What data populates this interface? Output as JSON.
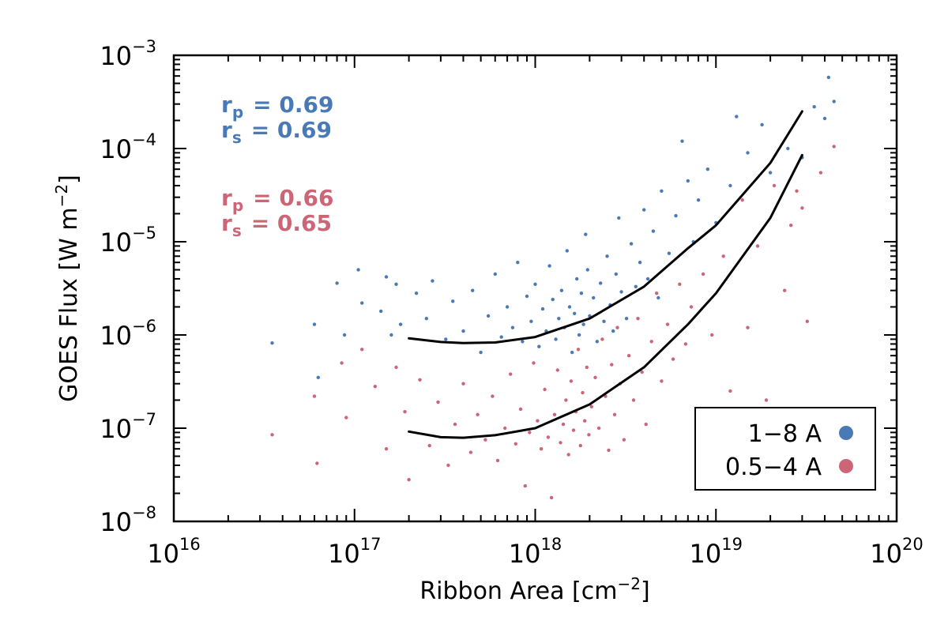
{
  "chart_data": {
    "type": "scatter",
    "xlabel": "Ribbon Area [cm",
    "xlabel_sup": "−2",
    "xlabel_close": "]",
    "ylabel": "GOES Flux [W m",
    "ylabel_sup": "−2",
    "ylabel_close": "]",
    "x_scale": "log",
    "y_scale": "log",
    "xlim": [
      1e+16,
      1e+20
    ],
    "ylim": [
      1e-08,
      0.001
    ],
    "grid": false,
    "legend_position": "bottom-right",
    "x_ticks": [
      {
        "value": 1e+16,
        "base": "10",
        "exp": "16"
      },
      {
        "value": 1e+17,
        "base": "10",
        "exp": "17"
      },
      {
        "value": 1e+18,
        "base": "10",
        "exp": "18"
      },
      {
        "value": 1e+19,
        "base": "10",
        "exp": "19"
      },
      {
        "value": 1e+20,
        "base": "10",
        "exp": "20"
      }
    ],
    "y_ticks": [
      {
        "value": 1e-08,
        "base": "10",
        "exp": "−8"
      },
      {
        "value": 1e-07,
        "base": "10",
        "exp": "−7"
      },
      {
        "value": 1e-06,
        "base": "10",
        "exp": "−6"
      },
      {
        "value": 1e-05,
        "base": "10",
        "exp": "−5"
      },
      {
        "value": 0.0001,
        "base": "10",
        "exp": "−4"
      },
      {
        "value": 0.001,
        "base": "10",
        "exp": "−3"
      }
    ],
    "series": [
      {
        "name": "1−8 A",
        "color": "#4a7ab5",
        "fit_curve": {
          "x": [
            2e+17,
            3e+17,
            4e+17,
            6e+17,
            1e+18,
            2e+18,
            4e+18,
            7e+18,
            1e+19,
            2e+19,
            3e+19
          ],
          "y": [
            9.2e-07,
            8.4e-07,
            8.2e-07,
            8.3e-07,
            9.5e-07,
            1.5e-06,
            3.3e-06,
            8.5e-06,
            1.5e-05,
            7e-05,
            0.00025
          ]
        },
        "stats": {
          "rp_label": "r",
          "rp_sub": "p",
          "rp_value": "= 0.69",
          "rs_label": "r",
          "rs_sub": "s",
          "rs_value": "= 0.69"
        },
        "points": [
          [
            3.5e+16,
            8.2e-07
          ],
          [
            6e+16,
            1.3e-06
          ],
          [
            6.3e+16,
            3.5e-07
          ],
          [
            8e+16,
            3.6e-06
          ],
          [
            8.8e+16,
            1e-06
          ],
          [
            1.05e+17,
            5e-06
          ],
          [
            1.1e+17,
            2.2e-06
          ],
          [
            1.4e+17,
            1.8e-06
          ],
          [
            1.5e+17,
            4.2e-06
          ],
          [
            1.6e+17,
            1e-06
          ],
          [
            1.7e+17,
            3.5e-06
          ],
          [
            1.8e+17,
            1.3e-06
          ],
          [
            2.2e+17,
            2.8e-06
          ],
          [
            2.5e+17,
            1.5e-06
          ],
          [
            2.7e+17,
            3.8e-06
          ],
          [
            3.2e+17,
            9e-07
          ],
          [
            3.5e+17,
            2.3e-06
          ],
          [
            4e+17,
            1.1e-06
          ],
          [
            4.5e+17,
            3e-06
          ],
          [
            5e+17,
            6.5e-07
          ],
          [
            5.5e+17,
            1.6e-06
          ],
          [
            6e+17,
            4.5e-06
          ],
          [
            6.5e+17,
            9.5e-07
          ],
          [
            7e+17,
            2e-06
          ],
          [
            7.5e+17,
            1.2e-06
          ],
          [
            8e+17,
            6e-06
          ],
          [
            8.5e+17,
            8.5e-07
          ],
          [
            9e+17,
            2.6e-06
          ],
          [
            9.5e+17,
            1.4e-06
          ],
          [
            1e+18,
            3.5e-06
          ],
          [
            1.05e+18,
            7.5e-07
          ],
          [
            1.1e+18,
            1.9e-06
          ],
          [
            1.15e+18,
            1.1e-06
          ],
          [
            1.2e+18,
            5.5e-06
          ],
          [
            1.25e+18,
            2.4e-06
          ],
          [
            1.3e+18,
            9e-07
          ],
          [
            1.35e+18,
            1.5e-06
          ],
          [
            1.4e+18,
            3e-06
          ],
          [
            1.45e+18,
            1.2e-06
          ],
          [
            1.5e+18,
            8e-06
          ],
          [
            1.55e+18,
            2e-06
          ],
          [
            1.6e+18,
            6.5e-07
          ],
          [
            1.65e+18,
            1.7e-06
          ],
          [
            1.7e+18,
            4e-06
          ],
          [
            1.75e+18,
            1e-06
          ],
          [
            1.8e+18,
            2.8e-06
          ],
          [
            1.85e+18,
            1.3e-06
          ],
          [
            1.9e+18,
            1.2e-05
          ],
          [
            1.95e+18,
            5e-06
          ],
          [
            2e+18,
            1.6e-06
          ],
          [
            2.1e+18,
            2.5e-06
          ],
          [
            2.2e+18,
            8.5e-07
          ],
          [
            2.3e+18,
            3.6e-06
          ],
          [
            2.4e+18,
            1.4e-06
          ],
          [
            2.5e+18,
            7e-06
          ],
          [
            2.6e+18,
            2.1e-06
          ],
          [
            2.7e+18,
            1.1e-06
          ],
          [
            2.8e+18,
            4.5e-06
          ],
          [
            2.9e+18,
            1.8e-05
          ],
          [
            3e+18,
            2.9e-06
          ],
          [
            3.2e+18,
            1.5e-06
          ],
          [
            3.4e+18,
            9.5e-06
          ],
          [
            3.6e+18,
            3.3e-06
          ],
          [
            3.8e+18,
            6e-06
          ],
          [
            4e+18,
            2.2e-05
          ],
          [
            4.2e+18,
            4e-06
          ],
          [
            4.5e+18,
            1.3e-05
          ],
          [
            4.8e+18,
            2.5e-06
          ],
          [
            5e+18,
            3.5e-05
          ],
          [
            5.5e+18,
            7.5e-06
          ],
          [
            6e+18,
            1.9e-05
          ],
          [
            6.5e+18,
            0.00012
          ],
          [
            7e+18,
            4.5e-05
          ],
          [
            7.5e+18,
            1e-05
          ],
          [
            8e+18,
            2.8e-05
          ],
          [
            9e+18,
            6e-05
          ],
          [
            1e+19,
            1.6e-05
          ],
          [
            1.2e+19,
            4e-05
          ],
          [
            1.3e+19,
            0.00022
          ],
          [
            1.5e+19,
            9e-05
          ],
          [
            1.8e+19,
            0.00018
          ],
          [
            2e+19,
            5.5e-05
          ],
          [
            2.5e+19,
            0.0001
          ],
          [
            3e+19,
            8e-05
          ],
          [
            3.5e+19,
            0.00028
          ],
          [
            4e+19,
            0.00021
          ],
          [
            4.5e+19,
            0.00032
          ],
          [
            4.2e+19,
            0.00058
          ]
        ]
      },
      {
        "name": "0.5−4 A",
        "color": "#cc6677",
        "fit_curve": {
          "x": [
            2e+17,
            3e+17,
            4e+17,
            6e+17,
            1e+18,
            2e+18,
            4e+18,
            7e+18,
            1e+19,
            2e+19,
            3e+19
          ],
          "y": [
            9.2e-08,
            8e-08,
            7.9e-08,
            8.4e-08,
            1e-07,
            1.8e-07,
            4.5e-07,
            1.3e-06,
            2.8e-06,
            1.8e-05,
            8.5e-05
          ]
        },
        "stats": {
          "rp_label": "r",
          "rp_sub": "p",
          "rp_value": "= 0.66",
          "rs_label": "r",
          "rs_sub": "s",
          "rs_value": "= 0.65"
        },
        "points": [
          [
            3.5e+16,
            8.5e-08
          ],
          [
            6e+16,
            2.2e-07
          ],
          [
            6.2e+16,
            4.2e-08
          ],
          [
            8.5e+16,
            5e-07
          ],
          [
            9e+16,
            1.3e-07
          ],
          [
            1.1e+17,
            7e-07
          ],
          [
            1.3e+17,
            2.8e-07
          ],
          [
            1.5e+17,
            6e-08
          ],
          [
            1.7e+17,
            4.5e-07
          ],
          [
            1.9e+17,
            1.5e-07
          ],
          [
            2e+17,
            2.8e-08
          ],
          [
            2.3e+17,
            3.3e-07
          ],
          [
            2.6e+17,
            6.5e-08
          ],
          [
            2.9e+17,
            1.9e-07
          ],
          [
            3.3e+17,
            4e-08
          ],
          [
            3.6e+17,
            1.1e-07
          ],
          [
            4e+17,
            3e-07
          ],
          [
            4.4e+17,
            5.5e-08
          ],
          [
            4.8e+17,
            1.4e-07
          ],
          [
            5.3e+17,
            7.5e-08
          ],
          [
            5.8e+17,
            2.2e-07
          ],
          [
            6.2e+17,
            4.5e-08
          ],
          [
            6.8e+17,
            1e-07
          ],
          [
            7.3e+17,
            3.8e-07
          ],
          [
            7.8e+17,
            6.8e-08
          ],
          [
            8.3e+17,
            1.6e-07
          ],
          [
            8.8e+17,
            2.4e-08
          ],
          [
            9.3e+17,
            9e-08
          ],
          [
            9.8e+17,
            5e-07
          ],
          [
            1.03e+18,
            1.2e-07
          ],
          [
            1.08e+18,
            6e-08
          ],
          [
            1.13e+18,
            2.6e-07
          ],
          [
            1.18e+18,
            8e-08
          ],
          [
            1.23e+18,
            1.8e-08
          ],
          [
            1.28e+18,
            1.4e-07
          ],
          [
            1.33e+18,
            4.2e-07
          ],
          [
            1.38e+18,
            7e-08
          ],
          [
            1.43e+18,
            1.1e-07
          ],
          [
            1.48e+18,
            2e-07
          ],
          [
            1.53e+18,
            5.2e-08
          ],
          [
            1.58e+18,
            3.2e-07
          ],
          [
            1.63e+18,
            9.5e-08
          ],
          [
            1.68e+18,
            1.5e-07
          ],
          [
            1.73e+18,
            7e-07
          ],
          [
            1.78e+18,
            6.5e-08
          ],
          [
            1.83e+18,
            2.4e-07
          ],
          [
            1.88e+18,
            1.2e-07
          ],
          [
            1.93e+18,
            4.5e-07
          ],
          [
            1.98e+18,
            8.5e-08
          ],
          [
            2.05e+18,
            1.7e-07
          ],
          [
            2.15e+18,
            3.5e-07
          ],
          [
            2.25e+18,
            1e-07
          ],
          [
            2.35e+18,
            9e-07
          ],
          [
            2.45e+18,
            2.2e-07
          ],
          [
            2.55e+18,
            5.8e-08
          ],
          [
            2.65e+18,
            4.8e-07
          ],
          [
            2.75e+18,
            1.4e-07
          ],
          [
            2.85e+18,
            1.2e-06
          ],
          [
            2.95e+18,
            3e-07
          ],
          [
            3.1e+18,
            7.5e-08
          ],
          [
            3.3e+18,
            6e-07
          ],
          [
            3.5e+18,
            2e-07
          ],
          [
            3.7e+18,
            1.5e-06
          ],
          [
            3.9e+18,
            4e-07
          ],
          [
            4.1e+18,
            1.1e-07
          ],
          [
            4.4e+18,
            8.5e-07
          ],
          [
            4.7e+18,
            2.8e-06
          ],
          [
            5e+18,
            3.2e-07
          ],
          [
            5.4e+18,
            1.3e-06
          ],
          [
            5.8e+18,
            5.5e-07
          ],
          [
            6.3e+18,
            3.5e-06
          ],
          [
            6.8e+18,
            8e-07
          ],
          [
            7.3e+18,
            2e-06
          ],
          [
            7.8e+18,
            1.6e-07
          ],
          [
            8.5e+18,
            4.5e-06
          ],
          [
            9.5e+18,
            1e-06
          ],
          [
            1.1e+19,
            7e-06
          ],
          [
            1.2e+19,
            2.5e-07
          ],
          [
            1.4e+19,
            2.8e-05
          ],
          [
            1.5e+19,
            1.2e-06
          ],
          [
            1.7e+19,
            9e-06
          ],
          [
            1.9e+19,
            2e-07
          ],
          [
            2.1e+19,
            4e-05
          ],
          [
            2.4e+19,
            3e-06
          ],
          [
            2.6e+19,
            1.5e-05
          ],
          [
            2.8e+19,
            3.5e-05
          ],
          [
            3e+19,
            2.3e-05
          ],
          [
            3.2e+19,
            1.4e-06
          ],
          [
            3.8e+19,
            5.5e-05
          ],
          [
            4.5e+19,
            0.000105
          ]
        ]
      }
    ]
  }
}
